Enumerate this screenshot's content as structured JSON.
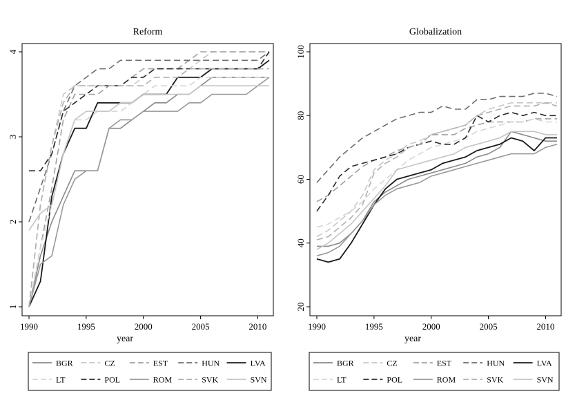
{
  "chart_data": [
    {
      "type": "line",
      "title": "Reform",
      "xlabel": "year",
      "ylabel": "",
      "xlim": [
        1990,
        2011
      ],
      "ylim": [
        1,
        4
      ],
      "xticks": [
        1990,
        1995,
        2000,
        2005,
        2010
      ],
      "yticks": [
        1,
        2,
        3,
        4
      ],
      "grid": false,
      "legend_position": "bottom",
      "x": [
        1990,
        1991,
        1992,
        1993,
        1994,
        1995,
        1996,
        1997,
        1998,
        1999,
        2000,
        2001,
        2002,
        2003,
        2004,
        2005,
        2006,
        2007,
        2008,
        2009,
        2010,
        2011
      ],
      "series": [
        {
          "name": "BGR",
          "color": "#8a8a8a",
          "dash": "solid",
          "values": [
            1.0,
            1.6,
            2.0,
            2.3,
            2.6,
            2.6,
            2.6,
            3.1,
            3.1,
            3.2,
            3.3,
            3.4,
            3.4,
            3.5,
            3.5,
            3.6,
            3.7,
            3.7,
            3.7,
            3.7,
            3.7,
            3.7
          ]
        },
        {
          "name": "CZ",
          "color": "#c8c8c8",
          "dash": "dashed",
          "values": [
            1.0,
            2.2,
            2.9,
            3.5,
            3.6,
            3.6,
            3.6,
            3.6,
            3.6,
            3.6,
            3.7,
            3.8,
            3.8,
            3.8,
            3.8,
            3.9,
            4.0,
            4.0,
            4.0,
            4.0,
            4.0,
            4.0
          ]
        },
        {
          "name": "EST",
          "color": "#a0a0a0",
          "dash": "dashed",
          "values": [
            1.0,
            1.7,
            2.4,
            3.2,
            3.5,
            3.5,
            3.5,
            3.6,
            3.6,
            3.7,
            3.8,
            3.8,
            3.8,
            3.8,
            3.9,
            4.0,
            4.0,
            4.0,
            4.0,
            4.0,
            4.0,
            4.0
          ]
        },
        {
          "name": "HUN",
          "color": "#6e6e6e",
          "dash": "dashed",
          "values": [
            2.0,
            2.4,
            2.8,
            3.3,
            3.6,
            3.7,
            3.8,
            3.8,
            3.9,
            3.9,
            3.9,
            3.9,
            3.9,
            3.9,
            3.9,
            3.9,
            3.9,
            3.9,
            3.9,
            3.9,
            3.9,
            4.0
          ]
        },
        {
          "name": "LVA",
          "color": "#1a1a1a",
          "dash": "solid",
          "values": [
            1.0,
            1.3,
            2.3,
            2.8,
            3.1,
            3.1,
            3.4,
            3.4,
            3.4,
            3.4,
            3.5,
            3.5,
            3.5,
            3.7,
            3.7,
            3.7,
            3.8,
            3.8,
            3.8,
            3.8,
            3.8,
            3.9
          ]
        },
        {
          "name": "LT",
          "color": "#d6d6d6",
          "dash": "dashed",
          "values": [
            1.0,
            1.7,
            2.2,
            2.8,
            3.2,
            3.2,
            3.3,
            3.3,
            3.3,
            3.4,
            3.5,
            3.6,
            3.6,
            3.6,
            3.6,
            3.7,
            3.7,
            3.7,
            3.7,
            3.7,
            3.7,
            3.7
          ]
        },
        {
          "name": "POL",
          "color": "#2a2a2a",
          "dash": "dashed",
          "values": [
            2.6,
            2.6,
            2.8,
            3.3,
            3.4,
            3.5,
            3.6,
            3.6,
            3.6,
            3.7,
            3.7,
            3.8,
            3.8,
            3.8,
            3.8,
            3.8,
            3.8,
            3.8,
            3.8,
            3.8,
            3.8,
            4.0
          ]
        },
        {
          "name": "ROM",
          "color": "#999999",
          "dash": "solid",
          "values": [
            1.0,
            1.5,
            1.6,
            2.2,
            2.5,
            2.6,
            2.6,
            3.1,
            3.2,
            3.2,
            3.3,
            3.3,
            3.3,
            3.3,
            3.4,
            3.4,
            3.5,
            3.5,
            3.5,
            3.5,
            3.6,
            3.7
          ]
        },
        {
          "name": "SVK",
          "color": "#b0b0b0",
          "dash": "dashed",
          "values": [
            1.0,
            2.2,
            2.9,
            3.4,
            3.6,
            3.6,
            3.6,
            3.6,
            3.6,
            3.6,
            3.6,
            3.7,
            3.7,
            3.7,
            3.8,
            3.8,
            3.8,
            3.8,
            3.8,
            3.8,
            3.8,
            3.8
          ]
        },
        {
          "name": "SVN",
          "color": "#c4c4c4",
          "dash": "solid",
          "values": [
            1.9,
            2.1,
            2.2,
            2.8,
            3.2,
            3.3,
            3.3,
            3.3,
            3.4,
            3.4,
            3.5,
            3.5,
            3.5,
            3.5,
            3.5,
            3.6,
            3.6,
            3.6,
            3.6,
            3.6,
            3.6,
            3.6
          ]
        }
      ]
    },
    {
      "type": "line",
      "title": "Globalization",
      "xlabel": "year",
      "ylabel": "",
      "xlim": [
        1990,
        2011
      ],
      "ylim": [
        20,
        100
      ],
      "xticks": [
        1990,
        1995,
        2000,
        2005,
        2010
      ],
      "yticks": [
        20,
        40,
        60,
        80,
        100
      ],
      "grid": false,
      "legend_position": "bottom",
      "x": [
        1990,
        1991,
        1992,
        1993,
        1994,
        1995,
        1996,
        1997,
        1998,
        1999,
        2000,
        2001,
        2002,
        2003,
        2004,
        2005,
        2006,
        2007,
        2008,
        2009,
        2010,
        2011
      ],
      "series": [
        {
          "name": "BGR",
          "color": "#8a8a8a",
          "dash": "solid",
          "values": [
            39,
            39,
            40,
            43,
            47,
            53,
            56,
            58,
            60,
            61,
            62,
            63,
            64,
            65,
            67,
            68,
            70,
            75,
            74,
            73,
            72,
            72
          ]
        },
        {
          "name": "CZ",
          "color": "#c8c8c8",
          "dash": "dashed",
          "values": [
            42,
            44,
            47,
            50,
            55,
            63,
            66,
            68,
            71,
            72,
            74,
            75,
            76,
            77,
            80,
            82,
            83,
            84,
            84,
            84,
            84,
            84
          ]
        },
        {
          "name": "EST",
          "color": "#a0a0a0",
          "dash": "dashed",
          "values": [
            53,
            55,
            58,
            61,
            64,
            66,
            67,
            69,
            70,
            71,
            74,
            74,
            74,
            76,
            77,
            78,
            78,
            78,
            78,
            79,
            79,
            79
          ]
        },
        {
          "name": "HUN",
          "color": "#6e6e6e",
          "dash": "dashed",
          "values": [
            59,
            63,
            67,
            70,
            73,
            75,
            77,
            79,
            80,
            81,
            81,
            83,
            82,
            82,
            85,
            85,
            86,
            86,
            86,
            87,
            87,
            86
          ]
        },
        {
          "name": "LVA",
          "color": "#1a1a1a",
          "dash": "solid",
          "values": [
            35,
            34,
            35,
            40,
            46,
            52,
            57,
            60,
            61,
            62,
            63,
            65,
            66,
            67,
            69,
            70,
            71,
            73,
            72,
            69,
            73,
            73
          ]
        },
        {
          "name": "LT",
          "color": "#d6d6d6",
          "dash": "dashed",
          "values": [
            45,
            46,
            48,
            50,
            53,
            57,
            60,
            63,
            66,
            68,
            70,
            71,
            72,
            73,
            75,
            76,
            77,
            78,
            78,
            79,
            78,
            78
          ]
        },
        {
          "name": "POL",
          "color": "#2a2a2a",
          "dash": "dashed",
          "values": [
            50,
            55,
            61,
            64,
            65,
            66,
            67,
            68,
            70,
            71,
            72,
            71,
            71,
            73,
            80,
            78,
            80,
            81,
            80,
            81,
            80,
            80
          ]
        },
        {
          "name": "ROM",
          "color": "#999999",
          "dash": "solid",
          "values": [
            36,
            37,
            39,
            43,
            47,
            52,
            55,
            57,
            58,
            59,
            61,
            62,
            63,
            64,
            65,
            66,
            67,
            68,
            68,
            68,
            70,
            71
          ]
        },
        {
          "name": "SVK",
          "color": "#b0b0b0",
          "dash": "dashed",
          "values": [
            41,
            42,
            45,
            48,
            52,
            62,
            65,
            67,
            70,
            71,
            74,
            75,
            76,
            77,
            80,
            81,
            82,
            83,
            83,
            83,
            84,
            83
          ]
        },
        {
          "name": "SVN",
          "color": "#c4c4c4",
          "dash": "solid",
          "values": [
            38,
            40,
            43,
            46,
            50,
            54,
            58,
            63,
            64,
            65,
            66,
            67,
            68,
            70,
            71,
            72,
            73,
            75,
            75,
            75,
            74,
            74
          ]
        }
      ]
    }
  ]
}
